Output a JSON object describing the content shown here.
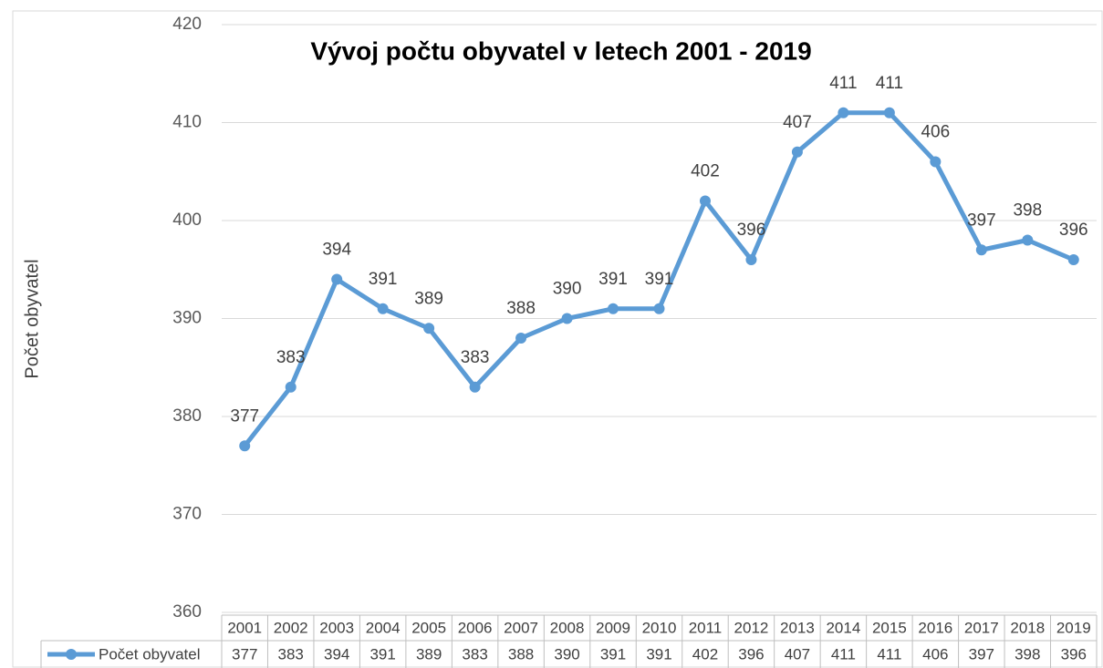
{
  "chart_data": {
    "type": "line",
    "title": "Vývoj počtu obyvatel v letech 2001 - 2019",
    "y_label": "Počet obyvatel",
    "categories": [
      "2001",
      "2002",
      "2003",
      "2004",
      "2005",
      "2006",
      "2007",
      "2008",
      "2009",
      "2010",
      "2011",
      "2012",
      "2013",
      "2014",
      "2015",
      "2016",
      "2017",
      "2018",
      "2019"
    ],
    "series": [
      {
        "name": "Počet obyvatel",
        "color": "#5b9bd5",
        "values": [
          377,
          383,
          394,
          391,
          389,
          383,
          388,
          390,
          391,
          391,
          402,
          396,
          407,
          411,
          411,
          406,
          397,
          398,
          396
        ]
      }
    ],
    "ylim": [
      360,
      420
    ],
    "yticks": [
      360,
      370,
      380,
      390,
      400,
      410,
      420
    ],
    "grid": true,
    "data_table": true
  }
}
